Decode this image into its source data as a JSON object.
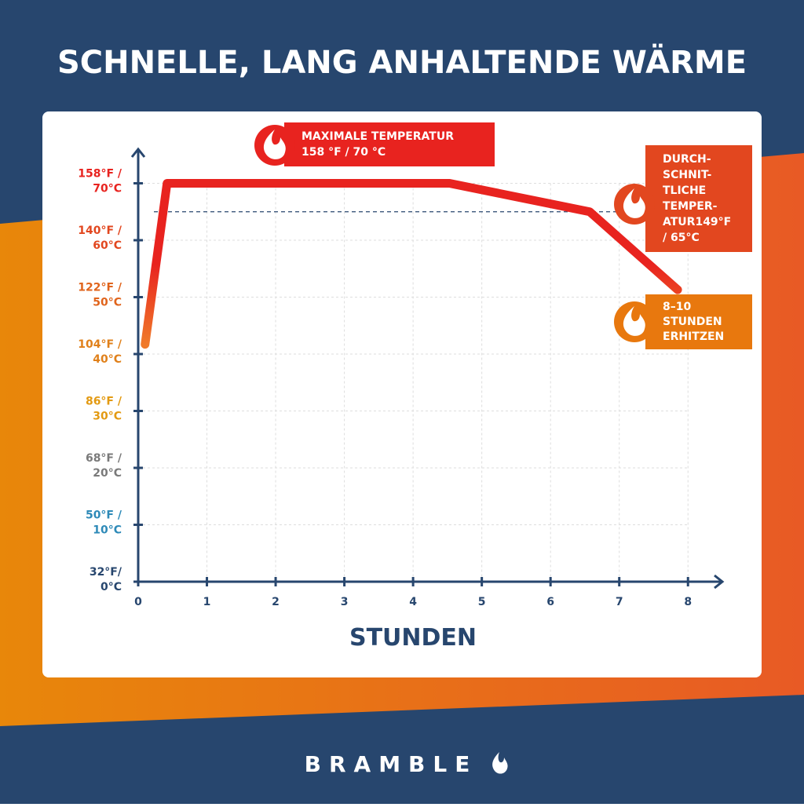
{
  "chart_data": {
    "type": "line",
    "title": "SCHNELLE, LANG ANHALTENDE WÄRME",
    "x_label": "STUNDEN",
    "brand": "BRAMBLE",
    "x": [
      0.1,
      0.42,
      4.53,
      6.57,
      7.85
    ],
    "series": [
      {
        "name": "Temperatur",
        "color": "#e8231f",
        "start_color": "#f07a2a",
        "values": [
          41.7,
          70,
          70,
          65,
          51.3
        ]
      }
    ],
    "xlim": [
      0,
      8.5
    ],
    "ylim": [
      0,
      76
    ],
    "xticks": [
      0,
      1,
      2,
      3,
      4,
      5,
      6,
      7,
      8
    ],
    "yticks": [
      {
        "value": 0,
        "label": "32°F/ 0°C"
      },
      {
        "value": 10,
        "label": "50°F / 10°C"
      },
      {
        "value": 20,
        "label": "68°F / 20°C"
      },
      {
        "value": 30,
        "label": "86°F / 30°C"
      },
      {
        "value": 40,
        "label": "104°F / 40°C"
      },
      {
        "value": 50,
        "label": "122°F / 50°C"
      },
      {
        "value": 60,
        "label": "140°F / 60°C"
      },
      {
        "value": 70,
        "label": "158°F / 70°C"
      }
    ],
    "ytick_colors": [
      "#27466e",
      "#2e8ab8",
      "#7a7a7a",
      "#e39a12",
      "#e0801a",
      "#e0641c",
      "#e2471f",
      "#e8231f"
    ],
    "grid": true,
    "reference_line": 65,
    "annotations": [
      {
        "lines": [
          "MAXIMALE TEMPERATUR",
          "158 °F / 70 °C"
        ],
        "color": "#e8231f"
      },
      {
        "lines": [
          "DURCH-",
          "SCHNIT-",
          "TLICHE",
          "TEMPER-",
          "ATUR149°F",
          "/ 65°C"
        ],
        "color": "#e2471f"
      },
      {
        "lines": [
          "8–10",
          "STUNDEN",
          "ERHITZEN"
        ],
        "color": "#e8780e"
      }
    ]
  }
}
